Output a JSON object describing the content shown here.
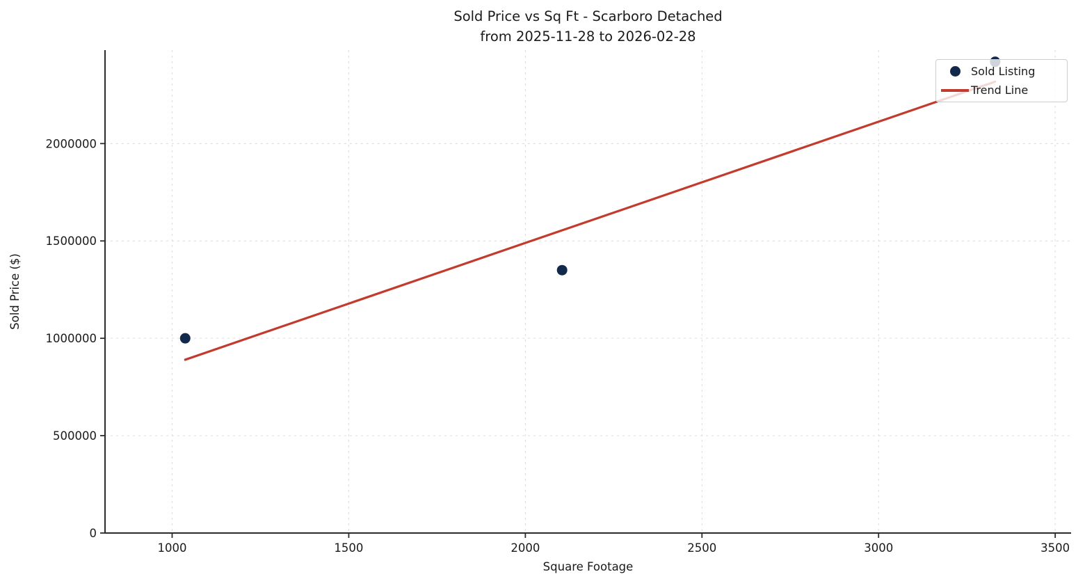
{
  "figure": {
    "background": "#ffffff"
  },
  "chart_data": {
    "type": "scatter",
    "title": "Sold Price vs Sq Ft - Scarboro Detached",
    "subtitle": "from 2025-11-28 to 2026-02-28",
    "xlabel": "Square Footage",
    "ylabel": "Sold Price ($)",
    "xlim": [
      810,
      3545
    ],
    "ylim": [
      0,
      2480000
    ],
    "x_ticks": [
      1000,
      1500,
      2000,
      2500,
      3000,
      3500
    ],
    "y_ticks": [
      0,
      500000,
      1000000,
      1500000,
      2000000
    ],
    "grid": true,
    "legend": {
      "position": "upper right",
      "entries": [
        {
          "label": "Sold Listing",
          "marker": "dot",
          "color": "#13294b"
        },
        {
          "label": "Trend Line",
          "marker": "line",
          "color": "#c23b2c"
        }
      ]
    },
    "series": [
      {
        "name": "Sold Listing",
        "type": "scatter",
        "color": "#13294b",
        "points": [
          {
            "sqft": 1037,
            "price": 1000000
          },
          {
            "sqft": 2104,
            "price": 1350000
          },
          {
            "sqft": 3330,
            "price": 2420000
          }
        ]
      },
      {
        "name": "Trend Line",
        "type": "line",
        "color": "#c23b2c",
        "points": [
          {
            "sqft": 1037,
            "price": 890000
          },
          {
            "sqft": 3330,
            "price": 2318000
          }
        ]
      }
    ],
    "colors": {
      "scatter": "#13294b",
      "trend": "#c23b2c",
      "grid": "#dcdcdc",
      "spine": "#2b2b2b",
      "text": "#1a1a1a",
      "legend_border": "#cccccc",
      "legend_background": "rgba(255,255,255,0.8)"
    }
  }
}
